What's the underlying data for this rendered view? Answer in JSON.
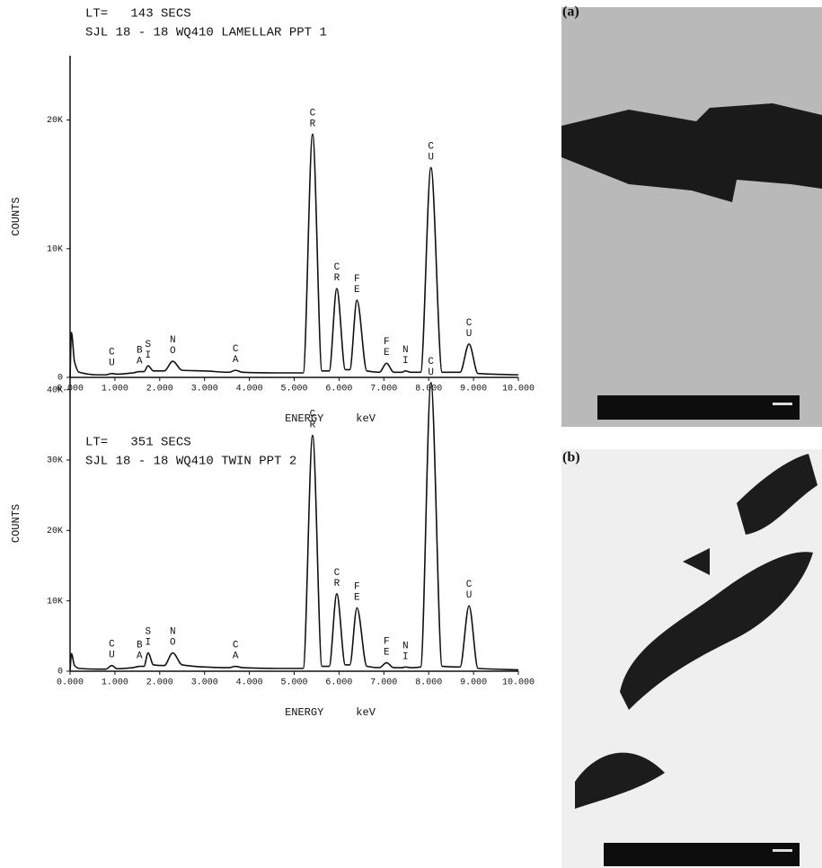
{
  "chart_data": [
    {
      "type": "line",
      "title": "LT=   143 SECS",
      "subtitle": "SJL 18 - 18 WQ410 LAMELLAR PPT 1",
      "y_label": "COUNTS",
      "x_label": "ENERGY     keV",
      "color": "#111111",
      "x": [
        0.0,
        0.03,
        0.1,
        0.2,
        0.6,
        0.8,
        0.93,
        1.05,
        1.4,
        1.55,
        1.65,
        1.74,
        1.86,
        2.1,
        2.29,
        2.5,
        3.0,
        3.55,
        3.69,
        3.85,
        4.6,
        5.2,
        5.41,
        5.62,
        5.78,
        5.95,
        6.14,
        6.24,
        6.4,
        6.62,
        6.9,
        7.06,
        7.22,
        7.4,
        7.48,
        7.6,
        7.82,
        8.05,
        8.3,
        8.7,
        8.9,
        9.1,
        10.0
      ],
      "values": [
        0,
        3500,
        1200,
        400,
        200,
        200,
        300,
        250,
        350,
        450,
        450,
        900,
        500,
        500,
        1250,
        550,
        500,
        400,
        550,
        400,
        350,
        350,
        18900,
        500,
        500,
        6900,
        600,
        600,
        6000,
        500,
        400,
        1100,
        400,
        400,
        500,
        400,
        400,
        16300,
        400,
        400,
        2600,
        300,
        200
      ],
      "xlim": [
        0,
        10
      ],
      "ylim": [
        0,
        25000
      ],
      "xticks": [
        {
          "value": 0,
          "label": "0.000"
        },
        {
          "value": 1,
          "label": "1.000"
        },
        {
          "value": 2,
          "label": "2.000"
        },
        {
          "value": 3,
          "label": "3.000"
        },
        {
          "value": 4,
          "label": "4.000"
        },
        {
          "value": 5,
          "label": "5.000"
        },
        {
          "value": 6,
          "label": "6.000"
        },
        {
          "value": 7,
          "label": "7.000"
        },
        {
          "value": 8,
          "label": "8.000"
        },
        {
          "value": 9,
          "label": "9.000"
        },
        {
          "value": 10,
          "label": "10.000"
        }
      ],
      "yticks": [
        0,
        {
          "value": 10000,
          "label": "10K"
        },
        {
          "value": 20000,
          "label": "20K"
        }
      ],
      "annotations": [
        {
          "text": "CU",
          "x": 0.93
        },
        {
          "text": "BA",
          "x": 1.55
        },
        {
          "text": "SI",
          "x": 1.74
        },
        {
          "text": "NO",
          "x": 2.29
        },
        {
          "text": "CA",
          "x": 3.69
        },
        {
          "text": "CR",
          "x": 5.41
        },
        {
          "text": "CR",
          "x": 5.95
        },
        {
          "text": "FE",
          "x": 6.4
        },
        {
          "text": "FE",
          "x": 7.06
        },
        {
          "text": "NI",
          "x": 7.48
        },
        {
          "text": "CU",
          "x": 8.05
        },
        {
          "text": "CU",
          "x": 8.9
        }
      ]
    },
    {
      "type": "line",
      "title": "LT=   351 SECS",
      "subtitle": "SJL 18 - 18 WQ410 TWIN PPT 2",
      "y_label": "COUNTS",
      "x_label": "ENERGY     keV",
      "color": "#111111",
      "x": [
        0.0,
        0.03,
        0.1,
        0.2,
        0.6,
        0.8,
        0.93,
        1.05,
        1.4,
        1.55,
        1.65,
        1.74,
        1.86,
        2.1,
        2.29,
        2.5,
        3.0,
        3.55,
        3.69,
        3.85,
        4.6,
        5.2,
        5.41,
        5.62,
        5.78,
        5.95,
        6.14,
        6.24,
        6.4,
        6.62,
        6.9,
        7.06,
        7.22,
        7.4,
        7.48,
        7.6,
        7.82,
        8.05,
        8.3,
        8.7,
        8.9,
        9.1,
        10.0
      ],
      "values": [
        0,
        2500,
        800,
        400,
        300,
        300,
        800,
        350,
        500,
        700,
        700,
        2600,
        900,
        800,
        2600,
        900,
        600,
        500,
        700,
        500,
        400,
        400,
        33500,
        700,
        700,
        11000,
        900,
        900,
        9000,
        700,
        500,
        1200,
        500,
        500,
        600,
        500,
        600,
        41000,
        700,
        600,
        9300,
        400,
        200
      ],
      "xlim": [
        0,
        10
      ],
      "ylim": [
        0,
        42000
      ],
      "xticks": [
        {
          "value": 0,
          "label": "0.000"
        },
        {
          "value": 1,
          "label": "1.000"
        },
        {
          "value": 2,
          "label": "2.000"
        },
        {
          "value": 3,
          "label": "3.000"
        },
        {
          "value": 4,
          "label": "4.000"
        },
        {
          "value": 5,
          "label": "5.000"
        },
        {
          "value": 6,
          "label": "6.000"
        },
        {
          "value": 7,
          "label": "7.000"
        },
        {
          "value": 8,
          "label": "8.000"
        },
        {
          "value": 9,
          "label": "9.000"
        },
        {
          "value": 10,
          "label": "10.000"
        }
      ],
      "yticks": [
        0,
        {
          "value": 10000,
          "label": "10K"
        },
        {
          "value": 20000,
          "label": "20K"
        },
        {
          "value": 30000,
          "label": "30K"
        },
        {
          "value": 40000,
          "label": "40K"
        }
      ],
      "annotations": [
        {
          "text": "CU",
          "x": 0.93
        },
        {
          "text": "BA",
          "x": 1.55
        },
        {
          "text": "SI",
          "x": 1.74
        },
        {
          "text": "NO",
          "x": 2.29
        },
        {
          "text": "CA",
          "x": 3.69
        },
        {
          "text": "CR",
          "x": 5.41
        },
        {
          "text": "CR",
          "x": 5.95
        },
        {
          "text": "FE",
          "x": 6.4
        },
        {
          "text": "FE",
          "x": 7.06
        },
        {
          "text": "NI",
          "x": 7.48
        },
        {
          "text": "CU",
          "x": 8.05
        },
        {
          "text": "CU",
          "x": 8.9
        }
      ]
    }
  ],
  "figures": [
    {
      "label": "(a)"
    },
    {
      "label": "(b)"
    }
  ]
}
